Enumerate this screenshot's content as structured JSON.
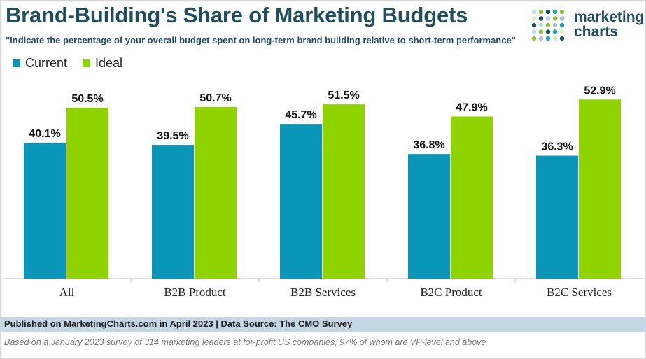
{
  "header": {
    "title": "Brand-Building's Share of Marketing Budgets",
    "subtitle": "\"Indicate the percentage of your overall budget spent on long-term brand building relative to short-term performance\""
  },
  "logo": {
    "line1": "marketing",
    "line2": "charts",
    "dot_colors": [
      "#1fa3b4",
      "#8cc63f",
      "#1f4e5f"
    ]
  },
  "legend": {
    "items": [
      {
        "label": "Current",
        "color": "#0a96b8"
      },
      {
        "label": "Ideal",
        "color": "#8fd400"
      }
    ]
  },
  "chart_data": {
    "type": "bar",
    "categories": [
      "All",
      "B2B Product",
      "B2B Services",
      "B2C Product",
      "B2C Services"
    ],
    "series": [
      {
        "name": "Current",
        "color": "#0a96b8",
        "values": [
          40.1,
          39.5,
          45.7,
          36.8,
          36.3
        ],
        "labels": [
          "40.1%",
          "39.5%",
          "45.7%",
          "36.8%",
          "36.3%"
        ]
      },
      {
        "name": "Ideal",
        "color": "#8fd400",
        "values": [
          50.5,
          50.7,
          51.5,
          47.9,
          52.9
        ],
        "labels": [
          "50.5%",
          "50.7%",
          "51.5%",
          "47.9%",
          "52.9%"
        ]
      }
    ],
    "ylim": [
      0,
      60
    ],
    "grid": false,
    "legend_position": "top-left"
  },
  "footer": {
    "published": "Published on MarketingCharts.com in April 2023 | Data Source: The CMO Survey",
    "note": "Based on a January 2023 survey of 314 marketing leaders at for-profit US companies, 97% of whom are VP-level and above"
  }
}
